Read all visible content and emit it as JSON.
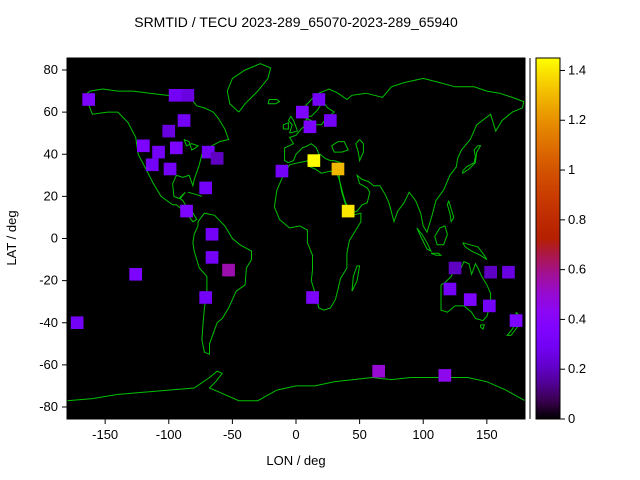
{
  "title": "SRMTID / TECU 2023-289_65070-2023-289_65940",
  "axes": {
    "xlabel": "LON / deg",
    "ylabel": "LAT / deg",
    "xlim": [
      -180,
      180
    ],
    "ylim": [
      -85.7,
      85.7
    ],
    "x_ticks": [
      -150,
      -100,
      -50,
      0,
      50,
      100,
      150
    ],
    "y_ticks": [
      -80,
      -60,
      -40,
      -20,
      0,
      20,
      40,
      60,
      80
    ]
  },
  "colorbar": {
    "min": 0,
    "max": 1.45,
    "ticks": [
      "0",
      "0.2",
      "0.4",
      "0.6",
      "0.8",
      "1",
      "1.2",
      "1.4"
    ],
    "tick_values": [
      0,
      0.2,
      0.4,
      0.6,
      0.8,
      1.0,
      1.2,
      1.4
    ],
    "palette": "gnuplot default pm3d (black-violet-magenta-orange-yellow)"
  },
  "chart_data": {
    "type": "heatmap",
    "projection": "equirectangular world map",
    "units": "TECU",
    "background": "#000000",
    "coastline_color": "#00c000",
    "grid": false,
    "legend_position": "right colorbar",
    "cell_size_deg": {
      "lon": 10,
      "lat": 6
    },
    "cells": [
      {
        "lon": -163,
        "lat": 66,
        "v": 0.35
      },
      {
        "lon": -95,
        "lat": 68,
        "v": 0.3
      },
      {
        "lon": -85,
        "lat": 68,
        "v": 0.25
      },
      {
        "lon": -88,
        "lat": 56,
        "v": 0.3
      },
      {
        "lon": -100,
        "lat": 51,
        "v": 0.25
      },
      {
        "lon": -120,
        "lat": 44,
        "v": 0.35
      },
      {
        "lon": -108,
        "lat": 41,
        "v": 0.3
      },
      {
        "lon": -94,
        "lat": 43,
        "v": 0.35
      },
      {
        "lon": -113,
        "lat": 35,
        "v": 0.3
      },
      {
        "lon": -99,
        "lat": 33,
        "v": 0.3
      },
      {
        "lon": -69,
        "lat": 41,
        "v": 0.3
      },
      {
        "lon": -62,
        "lat": 38,
        "v": 0.2
      },
      {
        "lon": -11,
        "lat": 32,
        "v": 0.3
      },
      {
        "lon": 14,
        "lat": 37,
        "v": 1.45
      },
      {
        "lon": 33,
        "lat": 33,
        "v": 1.3
      },
      {
        "lon": -71,
        "lat": 24,
        "v": 0.3
      },
      {
        "lon": -86,
        "lat": 13,
        "v": 0.35
      },
      {
        "lon": 41,
        "lat": 13,
        "v": 1.4
      },
      {
        "lon": 18,
        "lat": 66,
        "v": 0.3
      },
      {
        "lon": 5,
        "lat": 60,
        "v": 0.35
      },
      {
        "lon": 27,
        "lat": 56,
        "v": 0.3
      },
      {
        "lon": 11,
        "lat": 53,
        "v": 0.35
      },
      {
        "lon": -66,
        "lat": 2,
        "v": 0.3
      },
      {
        "lon": -66,
        "lat": -9,
        "v": 0.3
      },
      {
        "lon": -53,
        "lat": -15,
        "v": 0.55
      },
      {
        "lon": -126,
        "lat": -17,
        "v": 0.35
      },
      {
        "lon": -71,
        "lat": -28,
        "v": 0.3
      },
      {
        "lon": 13,
        "lat": -28,
        "v": 0.35
      },
      {
        "lon": 125,
        "lat": -14,
        "v": 0.2
      },
      {
        "lon": 153,
        "lat": -16,
        "v": 0.2
      },
      {
        "lon": 167,
        "lat": -16,
        "v": 0.25
      },
      {
        "lon": 121,
        "lat": -24,
        "v": 0.3
      },
      {
        "lon": 137,
        "lat": -29,
        "v": 0.35
      },
      {
        "lon": 152,
        "lat": -32,
        "v": 0.3
      },
      {
        "lon": -172,
        "lat": -40,
        "v": 0.3
      },
      {
        "lon": 173,
        "lat": -39,
        "v": 0.35
      },
      {
        "lon": 65,
        "lat": -63,
        "v": 0.5
      },
      {
        "lon": 117,
        "lat": -65,
        "v": 0.45
      }
    ]
  }
}
